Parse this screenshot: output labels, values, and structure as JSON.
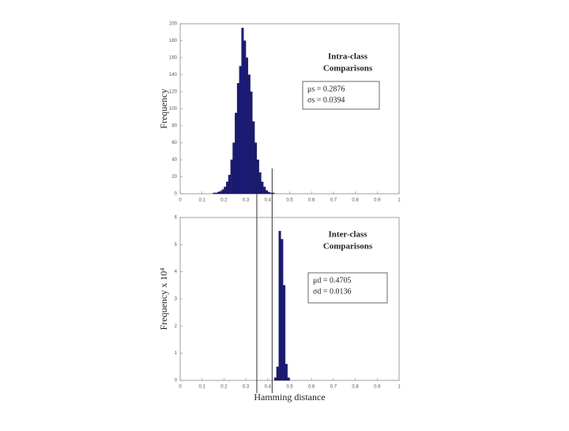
{
  "chart_data": [
    {
      "type": "histogram",
      "ylabel": "Frequency",
      "bins": [
        0.15,
        0.16,
        0.17,
        0.18,
        0.19,
        0.2,
        0.21,
        0.22,
        0.23,
        0.24,
        0.25,
        0.26,
        0.27,
        0.28,
        0.29,
        0.3,
        0.31,
        0.32,
        0.33,
        0.34,
        0.35,
        0.36,
        0.37,
        0.38,
        0.39,
        0.4,
        0.41,
        0.42,
        0.43
      ],
      "values": [
        1,
        1,
        2,
        3,
        5,
        8,
        14,
        22,
        40,
        60,
        95,
        130,
        150,
        195,
        180,
        160,
        140,
        120,
        85,
        60,
        40,
        25,
        14,
        8,
        4,
        2,
        1,
        1
      ],
      "color": "#1c1c78",
      "xlim": [
        0,
        1
      ],
      "xticks": [
        0,
        0.1,
        0.2,
        0.3,
        0.4,
        0.5,
        0.6,
        0.7,
        0.8,
        0.9,
        1
      ],
      "ylim": [
        0,
        200
      ],
      "yticks": [
        0,
        20,
        40,
        60,
        80,
        100,
        120,
        140,
        160,
        180,
        200
      ],
      "annotation": [
        "Intra-class",
        "Comparisons"
      ],
      "stats": [
        "μs = 0.2876",
        "σs = 0.0394"
      ],
      "threshold_lines": [
        0.35,
        0.42
      ]
    },
    {
      "type": "histogram",
      "ylabel": "Frequency x 10⁴",
      "xlabel": "Hamming distance",
      "bins": [
        0.43,
        0.44,
        0.45,
        0.46,
        0.47,
        0.48,
        0.49,
        0.5
      ],
      "values": [
        0.1,
        0.5,
        5.5,
        5.2,
        3.5,
        0.6,
        0.1
      ],
      "color": "#1c1c78",
      "xlim": [
        0,
        1
      ],
      "xticks": [
        0,
        0.1,
        0.2,
        0.3,
        0.4,
        0.5,
        0.6,
        0.7,
        0.8,
        0.9,
        1
      ],
      "ylim": [
        0,
        6
      ],
      "yticks": [
        0,
        1,
        2,
        3,
        4,
        5,
        6
      ],
      "annotation": [
        "Inter-class",
        "Comparisons"
      ],
      "stats": [
        "μd = 0.4705",
        "σd = 0.0136"
      ]
    }
  ]
}
